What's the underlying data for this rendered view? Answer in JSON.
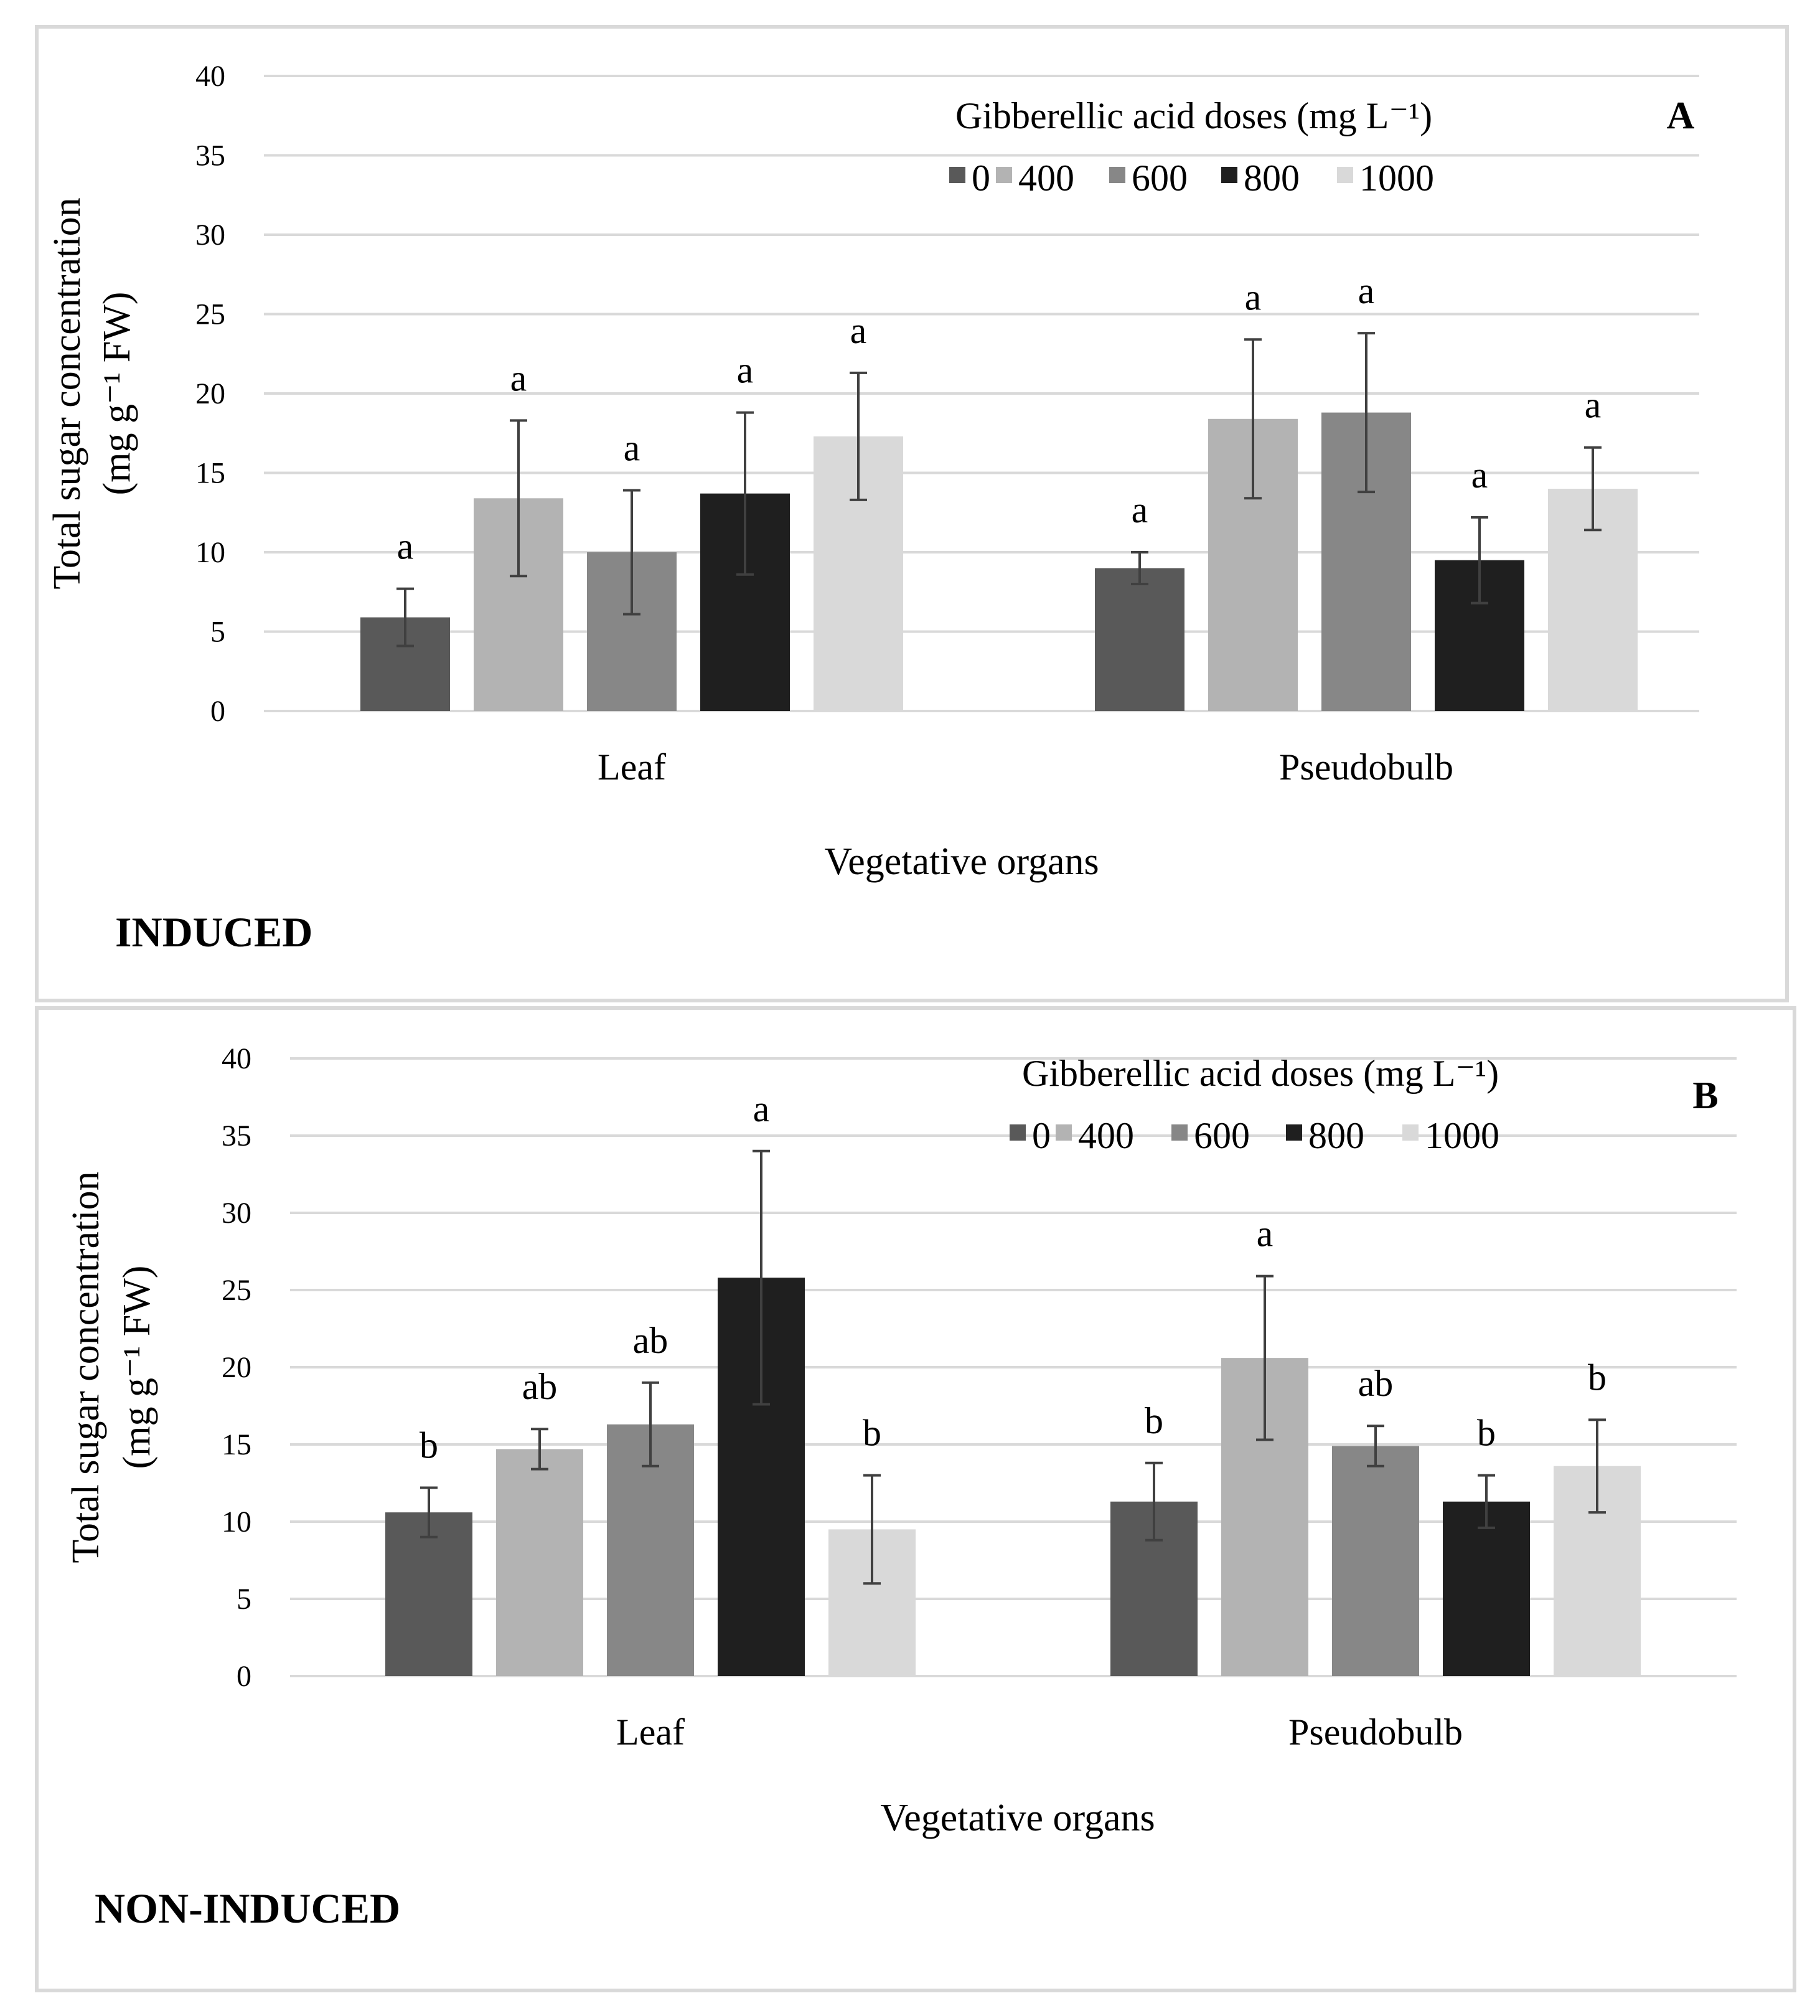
{
  "series_colors": [
    "#595959",
    "#b3b3b3",
    "#878787",
    "#1f1f1f",
    "#d9d9d9"
  ],
  "chart_data": [
    {
      "type": "bar",
      "panel_label": "A",
      "condition_label": "INDUCED",
      "xlabel": "Vegetative organs",
      "ylabel_line1": "Total sugar concentration",
      "ylabel_line2": "(mg g⁻¹ FW)",
      "ylim": [
        0,
        40
      ],
      "yticks": [
        0,
        5,
        10,
        15,
        20,
        25,
        30,
        35,
        40
      ],
      "grid": true,
      "legend_title": "Gibberellic acid doses (mg L⁻¹)",
      "legend_position": "top-right",
      "categories": [
        "Leaf",
        "Pseudobulb"
      ],
      "series": [
        {
          "name": "0",
          "values": [
            5.9,
            9.0
          ],
          "errors": [
            1.8,
            1.0
          ],
          "letters": [
            "a",
            "a"
          ]
        },
        {
          "name": "400",
          "values": [
            13.4,
            18.4
          ],
          "errors": [
            4.9,
            5.0
          ],
          "letters": [
            "a",
            "a"
          ]
        },
        {
          "name": "600",
          "values": [
            10.0,
            18.8
          ],
          "errors": [
            3.9,
            5.0
          ],
          "letters": [
            "a",
            "a"
          ]
        },
        {
          "name": "800",
          "values": [
            13.7,
            9.5
          ],
          "errors": [
            5.1,
            2.7
          ],
          "letters": [
            "a",
            "a"
          ]
        },
        {
          "name": "1000",
          "values": [
            17.3,
            14.0
          ],
          "errors": [
            4.0,
            2.6
          ],
          "letters": [
            "a",
            "a"
          ]
        }
      ]
    },
    {
      "type": "bar",
      "panel_label": "B",
      "condition_label": "NON-INDUCED",
      "xlabel": "Vegetative organs",
      "ylabel_line1": "Total sugar concentration",
      "ylabel_line2": "(mg g⁻¹ FW)",
      "ylim": [
        0,
        40
      ],
      "yticks": [
        0,
        5,
        10,
        15,
        20,
        25,
        30,
        35,
        40
      ],
      "grid": true,
      "legend_title": "Gibberellic acid doses (mg L⁻¹)",
      "legend_position": "top-right",
      "categories": [
        "Leaf",
        "Pseudobulb"
      ],
      "series": [
        {
          "name": "0",
          "values": [
            10.6,
            11.3
          ],
          "errors": [
            1.6,
            2.5
          ],
          "letters": [
            "b",
            "b"
          ]
        },
        {
          "name": "400",
          "values": [
            14.7,
            20.6
          ],
          "errors": [
            1.3,
            5.3
          ],
          "letters": [
            "ab",
            "a"
          ]
        },
        {
          "name": "600",
          "values": [
            16.3,
            14.9
          ],
          "errors": [
            2.7,
            1.3
          ],
          "letters": [
            "ab",
            "ab"
          ]
        },
        {
          "name": "800",
          "values": [
            25.8,
            11.3
          ],
          "errors": [
            8.2,
            1.7
          ],
          "letters": [
            "a",
            "b"
          ]
        },
        {
          "name": "1000",
          "values": [
            9.5,
            13.6
          ],
          "errors": [
            3.5,
            3.0
          ],
          "letters": [
            "b",
            "b"
          ]
        }
      ]
    }
  ]
}
